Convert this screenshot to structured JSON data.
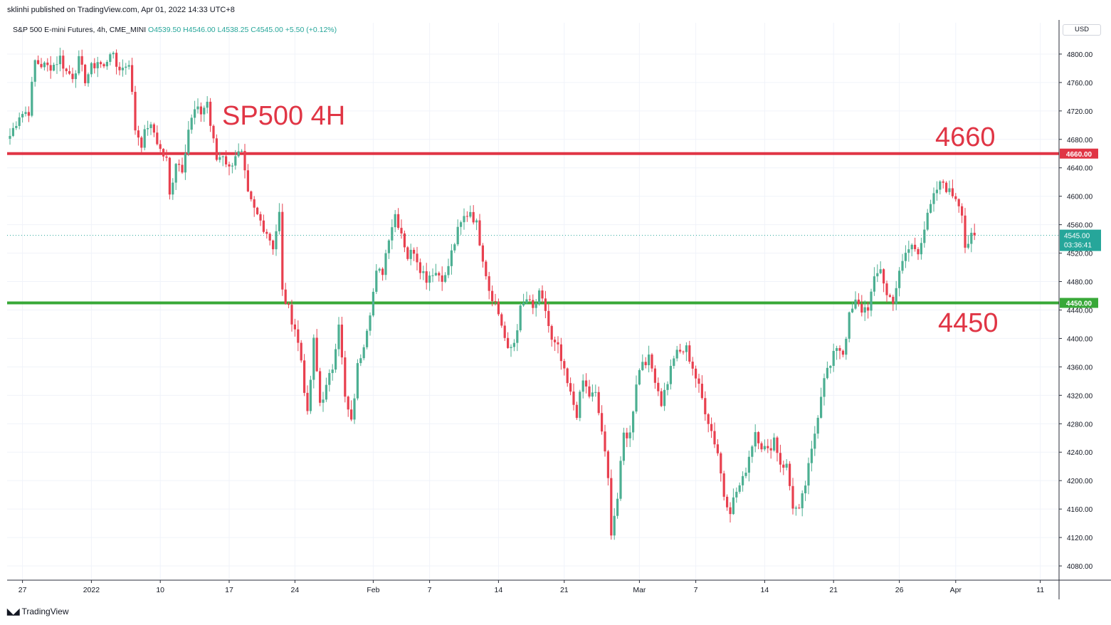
{
  "header": {
    "published_by": "sklinhi published on TradingView.com, Apr 01, 2022 14:33 UTC+8"
  },
  "legend": {
    "symbol": "S&P 500 E-mini Futures, 4h, CME_MINI",
    "open": "O4539.50",
    "high": "H4546.00",
    "low": "L4538.25",
    "close": "C4545.00",
    "change": "+5.50 (+0.12%)"
  },
  "currency": "USD",
  "footer": {
    "brand": "TradingView",
    "logo_icon": "tradingview-logo-icon"
  },
  "colors": {
    "up": "#4caf92",
    "down": "#e8404f",
    "resistance": "#e03545",
    "support": "#38a838",
    "grid": "#f0f3fa",
    "last_price": "#26a69a"
  },
  "chart_data": {
    "type": "candlestick",
    "title": "SP500 4H",
    "ylim": [
      4060,
      4844
    ],
    "y_ticks": [
      4080,
      4120,
      4160,
      4200,
      4240,
      4280,
      4320,
      4360,
      4400,
      4440,
      4480,
      4520,
      4560,
      4600,
      4640,
      4680,
      4720,
      4760,
      4800
    ],
    "x_ticks": [
      {
        "label": "27",
        "index": 4
      },
      {
        "label": "2022",
        "index": 26
      },
      {
        "label": "10",
        "index": 48
      },
      {
        "label": "17",
        "index": 70
      },
      {
        "label": "24",
        "index": 91
      },
      {
        "label": "Feb",
        "index": 116
      },
      {
        "label": "7",
        "index": 134
      },
      {
        "label": "14",
        "index": 156
      },
      {
        "label": "21",
        "index": 177
      },
      {
        "label": "Mar",
        "index": 201
      },
      {
        "label": "7",
        "index": 219
      },
      {
        "label": "14",
        "index": 241
      },
      {
        "label": "21",
        "index": 263
      },
      {
        "label": "26",
        "index": 284
      },
      {
        "label": "Apr",
        "index": 302
      },
      {
        "label": "11",
        "index": 329
      }
    ],
    "x_count": 336,
    "horizontal_lines": [
      {
        "value": 4660,
        "label": "4660",
        "axis_label": "4660.00",
        "color": "#e03545"
      },
      {
        "value": 4450,
        "label": "4450",
        "axis_label": "4450.00",
        "color": "#38a838"
      }
    ],
    "last_price": {
      "value": 4545,
      "axis_label": "4545.00",
      "countdown": "03:36:41"
    },
    "anchors": [
      [
        0,
        4685
      ],
      [
        3,
        4715
      ],
      [
        6,
        4720
      ],
      [
        8,
        4790
      ],
      [
        10,
        4785
      ],
      [
        12,
        4782
      ],
      [
        14,
        4785
      ],
      [
        16,
        4795
      ],
      [
        18,
        4775
      ],
      [
        20,
        4770
      ],
      [
        22,
        4790
      ],
      [
        24,
        4765
      ],
      [
        26,
        4780
      ],
      [
        28,
        4790
      ],
      [
        30,
        4780
      ],
      [
        32,
        4805
      ],
      [
        34,
        4783
      ],
      [
        36,
        4780
      ],
      [
        38,
        4790
      ],
      [
        40,
        4695
      ],
      [
        42,
        4675
      ],
      [
        44,
        4700
      ],
      [
        46,
        4690
      ],
      [
        48,
        4665
      ],
      [
        50,
        4650
      ],
      [
        51,
        4600
      ],
      [
        53,
        4650
      ],
      [
        55,
        4640
      ],
      [
        57,
        4695
      ],
      [
        59,
        4720
      ],
      [
        61,
        4718
      ],
      [
        63,
        4733
      ],
      [
        64,
        4700
      ],
      [
        66,
        4652
      ],
      [
        68,
        4660
      ],
      [
        70,
        4638
      ],
      [
        72,
        4660
      ],
      [
        74,
        4658
      ],
      [
        76,
        4600
      ],
      [
        78,
        4580
      ],
      [
        80,
        4565
      ],
      [
        82,
        4550
      ],
      [
        84,
        4530
      ],
      [
        86,
        4575
      ],
      [
        87,
        4465
      ],
      [
        89,
        4440
      ],
      [
        91,
        4415
      ],
      [
        93,
        4370
      ],
      [
        95,
        4290
      ],
      [
        97,
        4395
      ],
      [
        99,
        4310
      ],
      [
        101,
        4330
      ],
      [
        103,
        4360
      ],
      [
        105,
        4425
      ],
      [
        107,
        4315
      ],
      [
        109,
        4280
      ],
      [
        111,
        4360
      ],
      [
        113,
        4395
      ],
      [
        115,
        4440
      ],
      [
        117,
        4490
      ],
      [
        119,
        4495
      ],
      [
        121,
        4545
      ],
      [
        123,
        4575
      ],
      [
        125,
        4550
      ],
      [
        127,
        4515
      ],
      [
        129,
        4525
      ],
      [
        131,
        4500
      ],
      [
        133,
        4485
      ],
      [
        135,
        4495
      ],
      [
        137,
        4490
      ],
      [
        139,
        4485
      ],
      [
        141,
        4520
      ],
      [
        143,
        4550
      ],
      [
        145,
        4570
      ],
      [
        147,
        4580
      ],
      [
        149,
        4560
      ],
      [
        151,
        4515
      ],
      [
        153,
        4470
      ],
      [
        155,
        4450
      ],
      [
        157,
        4420
      ],
      [
        159,
        4380
      ],
      [
        161,
        4395
      ],
      [
        163,
        4440
      ],
      [
        165,
        4455
      ],
      [
        167,
        4440
      ],
      [
        169,
        4460
      ],
      [
        171,
        4440
      ],
      [
        173,
        4395
      ],
      [
        175,
        4385
      ],
      [
        177,
        4350
      ],
      [
        179,
        4320
      ],
      [
        181,
        4295
      ],
      [
        183,
        4340
      ],
      [
        185,
        4320
      ],
      [
        187,
        4320
      ],
      [
        189,
        4270
      ],
      [
        191,
        4200
      ],
      [
        192,
        4130
      ],
      [
        194,
        4175
      ],
      [
        196,
        4265
      ],
      [
        198,
        4265
      ],
      [
        200,
        4340
      ],
      [
        202,
        4370
      ],
      [
        204,
        4370
      ],
      [
        206,
        4345
      ],
      [
        208,
        4310
      ],
      [
        210,
        4340
      ],
      [
        212,
        4375
      ],
      [
        214,
        4380
      ],
      [
        216,
        4385
      ],
      [
        218,
        4360
      ],
      [
        220,
        4330
      ],
      [
        222,
        4300
      ],
      [
        224,
        4270
      ],
      [
        226,
        4240
      ],
      [
        228,
        4180
      ],
      [
        230,
        4160
      ],
      [
        232,
        4185
      ],
      [
        234,
        4200
      ],
      [
        236,
        4235
      ],
      [
        238,
        4270
      ],
      [
        240,
        4250
      ],
      [
        242,
        4240
      ],
      [
        244,
        4260
      ],
      [
        246,
        4225
      ],
      [
        248,
        4220
      ],
      [
        250,
        4165
      ],
      [
        252,
        4155
      ],
      [
        254,
        4195
      ],
      [
        256,
        4240
      ],
      [
        258,
        4295
      ],
      [
        260,
        4350
      ],
      [
        262,
        4360
      ],
      [
        264,
        4390
      ],
      [
        266,
        4380
      ],
      [
        268,
        4430
      ],
      [
        270,
        4450
      ],
      [
        272,
        4440
      ],
      [
        274,
        4445
      ],
      [
        276,
        4480
      ],
      [
        278,
        4500
      ],
      [
        280,
        4460
      ],
      [
        282,
        4455
      ],
      [
        284,
        4490
      ],
      [
        286,
        4520
      ],
      [
        288,
        4530
      ],
      [
        290,
        4525
      ],
      [
        292,
        4555
      ],
      [
        294,
        4585
      ],
      [
        296,
        4610
      ],
      [
        298,
        4620
      ],
      [
        300,
        4605
      ],
      [
        302,
        4600
      ],
      [
        304,
        4580
      ],
      [
        305,
        4530
      ],
      [
        307,
        4541
      ],
      [
        308,
        4545
      ]
    ]
  }
}
